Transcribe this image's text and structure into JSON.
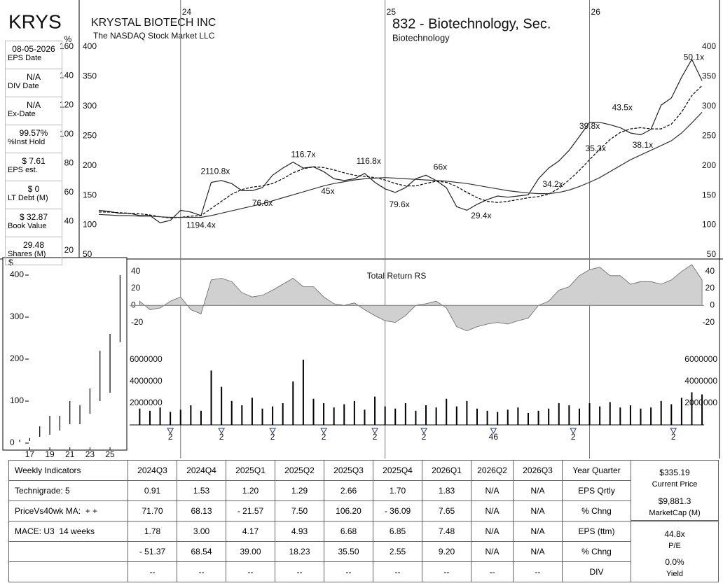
{
  "header": {
    "ticker": "KRYS",
    "company": "KRYSTAL BIOTECH INC",
    "exchange": "The NASDAQ Stock Market LLC",
    "industry": "832 - Biotechnology, Sec.",
    "sub_industry": "Biotechnology"
  },
  "sidebar": [
    {
      "value": "08-05-2026",
      "label": "EPS Date"
    },
    {
      "value": "N/A",
      "label": "DIV Date"
    },
    {
      "value": "N/A",
      "label": "Ex-Date"
    },
    {
      "value": "99.57%",
      "label": "%Inst Hold"
    },
    {
      "value": "$ 7.61",
      "label": "EPS est."
    },
    {
      "value": "$ 0",
      "label": "LT Debt (M)"
    },
    {
      "value": "$ 32.87",
      "label": "Book Value"
    },
    {
      "value": "29.48",
      "label": "Shares (M)"
    }
  ],
  "chart_data": [
    {
      "type": "line",
      "x": [
        2023.6,
        2023.65,
        2023.7,
        2023.75,
        2023.8,
        2023.85,
        2023.9,
        2023.95,
        2024,
        2024.05,
        2024.1,
        2024.15,
        2024.2,
        2024.25,
        2024.3,
        2024.35,
        2024.4,
        2024.45,
        2024.5,
        2024.55,
        2024.6,
        2024.65,
        2024.7,
        2024.75,
        2024.8,
        2024.85,
        2024.9,
        2024.95,
        2025,
        2025.05,
        2025.1,
        2025.15,
        2025.2,
        2025.25,
        2025.3,
        2025.35,
        2025.4,
        2025.45,
        2025.5,
        2025.55,
        2025.6,
        2025.65,
        2025.7,
        2025.75,
        2025.8,
        2025.85,
        2025.9,
        2025.95,
        2026,
        2026.05,
        2026.1,
        2026.15,
        2026.2,
        2026.25,
        2026.3,
        2026.35,
        2026.4,
        2026.45,
        2026.5,
        2026.55
      ],
      "series": [
        {
          "color": "#222222",
          "style": "solid",
          "values": [
            125,
            123,
            120,
            120,
            116,
            116,
            104,
            108,
            125,
            122,
            116,
            172,
            175,
            170,
            158,
            158,
            163,
            184,
            196,
            206,
            196,
            198,
            190,
            178,
            175,
            178,
            187,
            172,
            161,
            155,
            163,
            178,
            184,
            175,
            163,
            131,
            125,
            135,
            143,
            149,
            147,
            149,
            151,
            178,
            196,
            208,
            226,
            249,
            273,
            273,
            269,
            264,
            255,
            252,
            261,
            302,
            314,
            349,
            379,
            343
          ]
        },
        {
          "color": "#000000",
          "style": "dashed",
          "values": [
            122,
            122,
            121,
            120,
            119,
            117,
            114,
            112,
            113,
            115,
            116,
            128,
            140,
            152,
            160,
            164,
            166,
            170,
            178,
            188,
            195,
            198,
            197,
            193,
            188,
            184,
            182,
            180,
            176,
            170,
            166,
            166,
            170,
            174,
            172,
            165,
            155,
            146,
            140,
            138,
            140,
            143,
            146,
            148,
            152,
            162,
            176,
            192,
            210,
            228,
            244,
            256,
            262,
            264,
            262,
            262,
            270,
            290,
            318,
            335
          ]
        },
        {
          "color": "#333333",
          "style": "solid",
          "values": [
            118,
            117,
            116,
            116,
            115,
            115,
            114,
            113,
            113,
            113,
            113,
            116,
            120,
            124,
            128,
            132,
            136,
            141,
            146,
            151,
            156,
            161,
            166,
            170,
            173,
            176,
            178,
            179,
            180,
            179,
            178,
            177,
            176,
            175,
            174,
            172,
            170,
            167,
            164,
            161,
            158,
            156,
            154,
            153,
            153,
            155,
            159,
            165,
            172,
            180,
            190,
            200,
            210,
            218,
            226,
            234,
            242,
            255,
            272,
            290
          ]
        }
      ],
      "annotations": [
        {
          "text": "2110.8x",
          "x": 2024.17,
          "y": 190
        },
        {
          "text": "1194.4x",
          "x": 2024.1,
          "y": 99
        },
        {
          "text": "76.6x",
          "x": 2024.4,
          "y": 136
        },
        {
          "text": "116.7x",
          "x": 2024.6,
          "y": 218
        },
        {
          "text": "45x",
          "x": 2024.72,
          "y": 156
        },
        {
          "text": "116.8x",
          "x": 2024.92,
          "y": 207
        },
        {
          "text": "79.6x",
          "x": 2025.07,
          "y": 134
        },
        {
          "text": "66x",
          "x": 2025.27,
          "y": 197
        },
        {
          "text": "29.4x",
          "x": 2025.47,
          "y": 115
        },
        {
          "text": "34.2x",
          "x": 2025.82,
          "y": 168
        },
        {
          "text": "39.8x",
          "x": 2026.0,
          "y": 266
        },
        {
          "text": "35.3x",
          "x": 2026.03,
          "y": 228
        },
        {
          "text": "43.5x",
          "x": 2026.16,
          "y": 297
        },
        {
          "text": "38.1x",
          "x": 2026.26,
          "y": 234
        },
        {
          "text": "50.1x",
          "x": 2026.51,
          "y": 382
        }
      ],
      "xlim": [
        2023.6,
        2026.56
      ],
      "xticks": [
        {
          "value": 2024,
          "label": "24"
        },
        {
          "value": 2025,
          "label": "25"
        },
        {
          "value": 2026,
          "label": "26"
        }
      ],
      "ylim": [
        50,
        400
      ],
      "yticks": [
        50,
        100,
        150,
        200,
        250,
        300,
        350,
        400
      ],
      "y2label": "%",
      "y2lim": [
        20,
        160
      ],
      "y2ticks": [
        20,
        40,
        60,
        80,
        100,
        120,
        140,
        160
      ],
      "grid": false
    },
    {
      "type": "area",
      "title": "Total Return RS",
      "color": "#d0d0d0",
      "x": [
        2023.6,
        2023.65,
        2023.7,
        2023.75,
        2023.8,
        2023.85,
        2023.9,
        2023.95,
        2024,
        2024.05,
        2024.1,
        2024.15,
        2024.2,
        2024.25,
        2024.3,
        2024.35,
        2024.4,
        2024.45,
        2024.5,
        2024.55,
        2024.6,
        2024.65,
        2024.7,
        2024.75,
        2024.8,
        2024.85,
        2024.9,
        2024.95,
        2025,
        2025.05,
        2025.1,
        2025.15,
        2025.2,
        2025.25,
        2025.3,
        2025.35,
        2025.4,
        2025.45,
        2025.5,
        2025.55,
        2025.6,
        2025.65,
        2025.7,
        2025.75,
        2025.8,
        2025.85,
        2025.9,
        2025.95,
        2026,
        2026.05,
        2026.1,
        2026.15,
        2026.2,
        2026.25,
        2026.3,
        2026.35,
        2026.4,
        2026.45,
        2026.5,
        2026.55
      ],
      "values": [
        null,
        null,
        null,
        null,
        5,
        -5,
        -3,
        5,
        10,
        -5,
        -10,
        30,
        32,
        28,
        15,
        10,
        12,
        18,
        25,
        32,
        22,
        22,
        10,
        2,
        0,
        3,
        -5,
        -12,
        -18,
        -20,
        -12,
        0,
        2,
        5,
        -3,
        -25,
        -30,
        -25,
        -22,
        -20,
        -22,
        -18,
        -15,
        0,
        5,
        18,
        22,
        35,
        42,
        45,
        35,
        35,
        25,
        28,
        28,
        25,
        30,
        40,
        48,
        30
      ],
      "xlim": [
        2023.6,
        2026.56
      ],
      "ylim": [
        -36,
        53
      ],
      "yticks": [
        -20,
        0,
        20,
        40
      ]
    },
    {
      "type": "bar",
      "color": "#000000",
      "x": [
        2023.6,
        2023.65,
        2023.7,
        2023.75,
        2023.8,
        2023.85,
        2023.9,
        2023.95,
        2024,
        2024.05,
        2024.1,
        2024.15,
        2024.2,
        2024.25,
        2024.3,
        2024.35,
        2024.4,
        2024.45,
        2024.5,
        2024.55,
        2024.6,
        2024.65,
        2024.7,
        2024.75,
        2024.8,
        2024.85,
        2024.9,
        2024.95,
        2025,
        2025.05,
        2025.1,
        2025.15,
        2025.2,
        2025.25,
        2025.3,
        2025.35,
        2025.4,
        2025.45,
        2025.5,
        2025.55,
        2025.6,
        2025.65,
        2025.7,
        2025.75,
        2025.8,
        2025.85,
        2025.9,
        2025.95,
        2026,
        2026.05,
        2026.1,
        2026.15,
        2026.2,
        2026.25,
        2026.3,
        2026.35,
        2026.4,
        2026.45,
        2026.5,
        2026.55
      ],
      "values": [
        null,
        null,
        null,
        null,
        1500000,
        1300000,
        1600000,
        1200000,
        1400000,
        1800000,
        1300000,
        5000000,
        3500000,
        2200000,
        1800000,
        2500000,
        1500000,
        1700000,
        2000000,
        4000000,
        6000000,
        2400000,
        2000000,
        1600000,
        1900000,
        2200000,
        1400000,
        2600000,
        1700000,
        1500000,
        2000000,
        1300000,
        1800000,
        1600000,
        2400000,
        1700000,
        2200000,
        1500000,
        1300000,
        1200000,
        1400000,
        1600000,
        1100000,
        1300000,
        1500000,
        2000000,
        1800000,
        1500000,
        2000000,
        1700000,
        2100000,
        1600000,
        1800000,
        1500000,
        1600000,
        2200000,
        1900000,
        2500000,
        3000000,
        2800000
      ],
      "events": [
        {
          "x": 2023.95,
          "label": "2"
        },
        {
          "x": 2024.2,
          "label": "2"
        },
        {
          "x": 2024.45,
          "label": "2"
        },
        {
          "x": 2024.7,
          "label": "2"
        },
        {
          "x": 2024.95,
          "label": "2"
        },
        {
          "x": 2025.19,
          "label": "2"
        },
        {
          "x": 2025.53,
          "label": "46"
        },
        {
          "x": 2025.92,
          "label": "2"
        },
        {
          "x": 2026.41,
          "label": "2"
        }
      ],
      "xlim": [
        2023.6,
        2026.56
      ],
      "ylim": [
        0,
        6500000
      ],
      "yticks": [
        2000000,
        4000000,
        6000000
      ]
    },
    {
      "type": "range",
      "ylabel": "$",
      "color": "#000000",
      "x": [
        2016,
        2017,
        2018,
        2019,
        2020,
        2021,
        2022,
        2023,
        2024,
        2025,
        2026
      ],
      "high": [
        8,
        12,
        40,
        65,
        65,
        100,
        90,
        130,
        220,
        260,
        400
      ],
      "low": [
        3,
        5,
        15,
        20,
        30,
        45,
        45,
        70,
        100,
        120,
        240
      ],
      "xlim": [
        2015.3,
        2026.6
      ],
      "xticks": [
        {
          "value": 2017,
          "label": "17"
        },
        {
          "value": 2019,
          "label": "19"
        },
        {
          "value": 2021,
          "label": "21"
        },
        {
          "value": 2023,
          "label": "23"
        },
        {
          "value": 2025,
          "label": "25"
        }
      ],
      "ylim": [
        -10,
        430
      ],
      "yticks": [
        0,
        100,
        200,
        300,
        400
      ]
    }
  ],
  "table": {
    "header": [
      "Weekly Indicators",
      "2024Q3",
      "2024Q4",
      "2025Q1",
      "2025Q2",
      "2025Q3",
      "2025Q4",
      "2026Q1",
      "2026Q2",
      "2026Q3",
      "Year Quarter"
    ],
    "rows": [
      [
        "Technigrade: 5",
        "0.91",
        "1.53",
        "1.20",
        "1.29",
        "2.66",
        "1.70",
        "1.83",
        "N/A",
        "N/A",
        "EPS Qrtly"
      ],
      [
        "PriceVs40wk MA:  + +",
        "71.70",
        "68.13",
        "- 21.57",
        "7.50",
        "106.20",
        "- 36.09",
        "7.65",
        "N/A",
        "N/A",
        "% Chng"
      ],
      [
        "MACE: U3  14 weeks",
        "1.78",
        "3.00",
        "4.17",
        "4.93",
        "6.68",
        "6.85",
        "7.48",
        "N/A",
        "N/A",
        "EPS (ttm)"
      ],
      [
        null,
        "- 51.37",
        "68.54",
        "39.00",
        "18.23",
        "35.50",
        "2.55",
        "9.20",
        "N/A",
        "N/A",
        "% Chng"
      ],
      [
        null,
        "--",
        "--",
        "--",
        "--",
        "--",
        "--",
        "--",
        "--",
        "--",
        "DIV"
      ]
    ]
  },
  "stats": [
    {
      "value": "$335.19",
      "label": "Current Price"
    },
    {
      "value": "$9,881.3",
      "label": "MarketCap (M)"
    },
    {
      "value": "44.8x",
      "label": "P/E"
    },
    {
      "value": "0.0%",
      "label": "Yield"
    }
  ]
}
